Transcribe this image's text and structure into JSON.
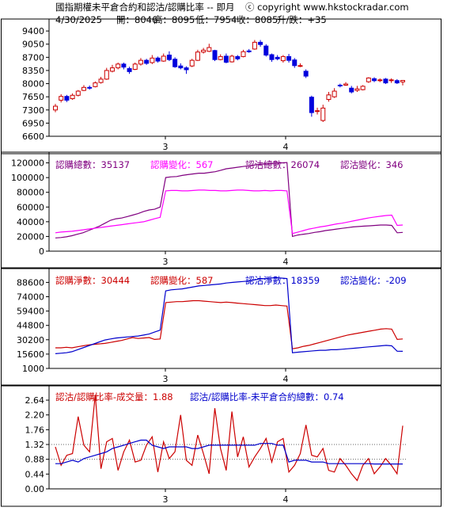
{
  "header": {
    "title": "國指期權未平倉合約和認沽/認購比率 -- 即月",
    "copyright": "ⓒ copyright www.hkstockradar.com",
    "date": "4/30/2025",
    "open_label": "開：8046",
    "high_label": "高：8095",
    "low_label": "低：7954",
    "close_label": "收：8085",
    "change_label": "升/跌：+35"
  },
  "colors": {
    "up": "#cc0000",
    "down": "#0000dd",
    "call_total": "#800080",
    "call_change": "#ff00ff",
    "call_net": "#cc0000",
    "put_net": "#0000cc",
    "ratio_volume": "#cc0000",
    "ratio_oi": "#0000cc"
  },
  "chart_data": [
    {
      "type": "candlestick",
      "x_tick_labels": [
        "3",
        "4"
      ],
      "y_ticks": [
        6600,
        6950,
        7300,
        7650,
        8000,
        8350,
        8700,
        9050,
        9400
      ],
      "ylim": [
        6600,
        9550
      ],
      "candles": [
        {
          "o": 7300,
          "c": 7400,
          "h": 7460,
          "l": 7240
        },
        {
          "o": 7560,
          "c": 7660,
          "h": 7720,
          "l": 7500
        },
        {
          "o": 7660,
          "c": 7560,
          "h": 7700,
          "l": 7510
        },
        {
          "o": 7600,
          "c": 7690,
          "h": 7740,
          "l": 7570
        },
        {
          "o": 7690,
          "c": 7800,
          "h": 7830,
          "l": 7660
        },
        {
          "o": 7820,
          "c": 7900,
          "h": 7960,
          "l": 7800
        },
        {
          "o": 7900,
          "c": 7880,
          "h": 7950,
          "l": 7840
        },
        {
          "o": 7920,
          "c": 8020,
          "h": 8060,
          "l": 7900
        },
        {
          "o": 8030,
          "c": 8120,
          "h": 8180,
          "l": 8000
        },
        {
          "o": 8120,
          "c": 8350,
          "h": 8420,
          "l": 8100
        },
        {
          "o": 8330,
          "c": 8420,
          "h": 8500,
          "l": 8300
        },
        {
          "o": 8420,
          "c": 8520,
          "h": 8560,
          "l": 8380
        },
        {
          "o": 8520,
          "c": 8440,
          "h": 8560,
          "l": 8380
        },
        {
          "o": 8400,
          "c": 8320,
          "h": 8450,
          "l": 8260
        },
        {
          "o": 8380,
          "c": 8520,
          "h": 8560,
          "l": 8360
        },
        {
          "o": 8520,
          "c": 8620,
          "h": 8680,
          "l": 8480
        },
        {
          "o": 8620,
          "c": 8540,
          "h": 8660,
          "l": 8500
        },
        {
          "o": 8560,
          "c": 8680,
          "h": 8760,
          "l": 8520
        },
        {
          "o": 8680,
          "c": 8600,
          "h": 8720,
          "l": 8560
        },
        {
          "o": 8600,
          "c": 8730,
          "h": 8800,
          "l": 8580
        },
        {
          "o": 8760,
          "c": 8640,
          "h": 8860,
          "l": 8600
        },
        {
          "o": 8650,
          "c": 8450,
          "h": 8700,
          "l": 8420
        },
        {
          "o": 8470,
          "c": 8420,
          "h": 8540,
          "l": 8380
        },
        {
          "o": 8420,
          "c": 8370,
          "h": 8460,
          "l": 8260
        },
        {
          "o": 8470,
          "c": 8620,
          "h": 8660,
          "l": 8440
        },
        {
          "o": 8620,
          "c": 8840,
          "h": 8900,
          "l": 8600
        },
        {
          "o": 8840,
          "c": 8890,
          "h": 8950,
          "l": 8800
        },
        {
          "o": 8860,
          "c": 8960,
          "h": 9060,
          "l": 8840
        },
        {
          "o": 8880,
          "c": 8640,
          "h": 8900,
          "l": 8600
        },
        {
          "o": 8640,
          "c": 8720,
          "h": 8780,
          "l": 8620
        },
        {
          "o": 8730,
          "c": 8570,
          "h": 8800,
          "l": 8540
        },
        {
          "o": 8580,
          "c": 8730,
          "h": 8770,
          "l": 8560
        },
        {
          "o": 8720,
          "c": 8660,
          "h": 8760,
          "l": 8620
        },
        {
          "o": 8720,
          "c": 8850,
          "h": 8900,
          "l": 8700
        },
        {
          "o": 8870,
          "c": 8860,
          "h": 8920,
          "l": 8820
        },
        {
          "o": 8920,
          "c": 9100,
          "h": 9160,
          "l": 8900
        },
        {
          "o": 9100,
          "c": 9040,
          "h": 9160,
          "l": 8980
        },
        {
          "o": 9000,
          "c": 8760,
          "h": 9050,
          "l": 8720
        },
        {
          "o": 8770,
          "c": 8640,
          "h": 8800,
          "l": 8580
        },
        {
          "o": 8700,
          "c": 8660,
          "h": 8760,
          "l": 8620
        },
        {
          "o": 8610,
          "c": 8720,
          "h": 8760,
          "l": 8560
        },
        {
          "o": 8720,
          "c": 8620,
          "h": 8790,
          "l": 8560
        },
        {
          "o": 8630,
          "c": 8480,
          "h": 8680,
          "l": 8420
        },
        {
          "o": 8480,
          "c": 8480,
          "h": 8540,
          "l": 8440
        },
        {
          "o": 8330,
          "c": 8200,
          "h": 8380,
          "l": 8150
        },
        {
          "o": 7640,
          "c": 7230,
          "h": 7680,
          "l": 7120
        },
        {
          "o": 7260,
          "c": 7280,
          "h": 7360,
          "l": 7180
        },
        {
          "o": 7020,
          "c": 7350,
          "h": 7440,
          "l": 6980
        },
        {
          "o": 7580,
          "c": 7700,
          "h": 7780,
          "l": 7520
        },
        {
          "o": 7650,
          "c": 7800,
          "h": 7880,
          "l": 7620
        },
        {
          "o": 7960,
          "c": 7940,
          "h": 8000,
          "l": 7900
        },
        {
          "o": 7960,
          "c": 7990,
          "h": 8040,
          "l": 7940
        },
        {
          "o": 7880,
          "c": 7780,
          "h": 7940,
          "l": 7740
        },
        {
          "o": 7820,
          "c": 7860,
          "h": 7940,
          "l": 7780
        },
        {
          "o": 7840,
          "c": 7930,
          "h": 7960,
          "l": 7820
        },
        {
          "o": 8050,
          "c": 8150,
          "h": 8170,
          "l": 8020
        },
        {
          "o": 8130,
          "c": 8080,
          "h": 8170,
          "l": 8040
        },
        {
          "o": 8080,
          "c": 8100,
          "h": 8140,
          "l": 8040
        },
        {
          "o": 8120,
          "c": 8020,
          "h": 8150,
          "l": 7990
        },
        {
          "o": 8080,
          "c": 8100,
          "h": 8140,
          "l": 8020
        },
        {
          "o": 8080,
          "c": 8020,
          "h": 8120,
          "l": 7990
        },
        {
          "o": 8046,
          "c": 8085,
          "h": 8095,
          "l": 7954
        }
      ]
    },
    {
      "type": "line",
      "legend": [
        {
          "text": "認購總數：35137",
          "color": "#800080"
        },
        {
          "text": "認購變化：567",
          "color": "#ff00ff"
        },
        {
          "text": "認沽總數：26074",
          "color": "#800080"
        },
        {
          "text": "認沽變化：346",
          "color": "#800080"
        }
      ],
      "x_tick_labels": [
        "3",
        "4"
      ],
      "y_ticks": [
        0,
        20000,
        40000,
        60000,
        80000,
        100000,
        120000
      ],
      "ylim": [
        0,
        126000
      ],
      "series": [
        {
          "color": "#800080",
          "values": [
            18000,
            18500,
            19500,
            21000,
            23000,
            25000,
            28000,
            31000,
            34000,
            38000,
            42000,
            44000,
            45000,
            47000,
            49000,
            51000,
            54000,
            56000,
            57000,
            60000,
            100000,
            101000,
            101500,
            103000,
            104000,
            105000,
            106000,
            106000,
            107000,
            108000,
            110000,
            112000,
            113000,
            114000,
            115000,
            116000,
            117000,
            118000,
            118500,
            119000,
            119500,
            120000,
            120500,
            20000,
            22000,
            23000,
            24000,
            25500,
            26500,
            28000,
            29000,
            30000,
            31000,
            32000,
            33000,
            33500,
            34000,
            34500,
            35000,
            35500,
            35500,
            35000,
            25000,
            25500
          ]
        },
        {
          "color": "#ff00ff",
          "values": [
            25000,
            26000,
            26500,
            27000,
            28000,
            29000,
            30000,
            31000,
            32000,
            33000,
            34000,
            35000,
            36000,
            37000,
            38000,
            39000,
            40000,
            42000,
            44000,
            46000,
            82000,
            82500,
            82500,
            82000,
            82000,
            82500,
            83000,
            83000,
            82500,
            82500,
            82000,
            82000,
            82500,
            83000,
            83000,
            82500,
            82000,
            82000,
            82500,
            82000,
            82500,
            82500,
            82000,
            24000,
            26000,
            28000,
            30000,
            31500,
            33000,
            34000,
            35500,
            37000,
            38000,
            39500,
            41000,
            42500,
            44000,
            45500,
            46500,
            47500,
            48500,
            49000,
            35000,
            35500
          ]
        }
      ]
    },
    {
      "type": "line",
      "legend": [
        {
          "text": "認購淨數：30444",
          "color": "#cc0000"
        },
        {
          "text": "認購變化：587",
          "color": "#cc0000"
        },
        {
          "text": "認沽淨數：18359",
          "color": "#0000cc"
        },
        {
          "text": "認沽變化：-209",
          "color": "#0000cc"
        }
      ],
      "x_tick_labels": [
        "3",
        "4"
      ],
      "y_ticks": [
        1000,
        15600,
        30200,
        44800,
        59400,
        74000,
        88600
      ],
      "ylim": [
        1000,
        97000
      ],
      "series": [
        {
          "color": "#cc0000",
          "values": [
            22000,
            22000,
            22500,
            22000,
            23000,
            24000,
            25000,
            25500,
            26000,
            26500,
            27500,
            28500,
            29500,
            31000,
            32500,
            31500,
            32000,
            32500,
            30500,
            31000,
            68000,
            68500,
            69000,
            69000,
            69500,
            70000,
            70000,
            69500,
            69000,
            68500,
            68000,
            68500,
            68000,
            67500,
            67000,
            66500,
            66000,
            65500,
            65000,
            65000,
            65500,
            65000,
            64500,
            21000,
            22000,
            23500,
            24500,
            26000,
            27500,
            29000,
            30500,
            32000,
            33500,
            35000,
            36000,
            37000,
            38000,
            39000,
            40000,
            41000,
            41500,
            41000,
            30500,
            31000
          ]
        },
        {
          "color": "#0000cc",
          "values": [
            16000,
            16500,
            17000,
            18000,
            20000,
            22000,
            24000,
            26000,
            28000,
            30000,
            31000,
            32000,
            32500,
            33000,
            33500,
            34000,
            35000,
            36000,
            38000,
            40000,
            80000,
            81000,
            81500,
            82000,
            83000,
            84000,
            85000,
            85500,
            86000,
            86500,
            87000,
            88000,
            88500,
            89000,
            89500,
            90000,
            91000,
            92000,
            92500,
            93000,
            93500,
            93000,
            92500,
            17000,
            17500,
            18000,
            18500,
            19000,
            19500,
            19500,
            20000,
            20000,
            20500,
            21000,
            21500,
            22000,
            22500,
            23000,
            23500,
            24000,
            24500,
            24000,
            18500,
            18400
          ]
        }
      ]
    },
    {
      "type": "line",
      "legend": [
        {
          "text": "認沽/認購比率-成交量：1.88",
          "color": "#cc0000"
        },
        {
          "text": "認沽/認購比率-未平倉合約總數：0.74",
          "color": "#0000cc"
        }
      ],
      "x_tick_labels": [
        "3",
        "4"
      ],
      "y_ticks": [
        0.0,
        0.44,
        0.88,
        1.32,
        1.76,
        2.2,
        2.64
      ],
      "y_tick_labels": [
        "0.00",
        "0.44",
        "0.88",
        "1.32",
        "1.76",
        "2.20",
        "2.64"
      ],
      "reference_lines": [
        0.88,
        1.32
      ],
      "ylim": [
        0,
        2.9
      ],
      "series": [
        {
          "color": "#cc0000",
          "values": [
            1.25,
            0.7,
            1.0,
            1.05,
            2.15,
            1.3,
            1.1,
            2.8,
            0.6,
            1.4,
            1.5,
            0.55,
            1.1,
            1.45,
            0.8,
            0.85,
            1.3,
            1.55,
            0.5,
            1.4,
            0.9,
            1.1,
            2.2,
            0.85,
            0.7,
            1.6,
            1.05,
            0.45,
            2.4,
            1.2,
            0.55,
            2.3,
            0.95,
            1.55,
            0.65,
            0.95,
            1.2,
            1.5,
            0.8,
            1.4,
            1.5,
            0.5,
            0.7,
            1.05,
            1.9,
            1.0,
            0.95,
            1.2,
            0.55,
            0.5,
            0.9,
            0.7,
            0.45,
            0.25,
            0.7,
            0.9,
            0.45,
            0.65,
            0.9,
            0.7,
            0.45,
            1.88
          ]
        },
        {
          "color": "#0000cc",
          "values": [
            0.75,
            0.75,
            0.8,
            0.85,
            0.8,
            0.9,
            0.95,
            1.0,
            1.05,
            1.1,
            1.2,
            1.25,
            1.3,
            1.35,
            1.4,
            1.45,
            1.45,
            1.3,
            1.25,
            1.2,
            1.25,
            1.25,
            1.25,
            1.25,
            1.2,
            1.2,
            1.25,
            1.3,
            1.3,
            1.3,
            1.3,
            1.3,
            1.3,
            1.3,
            1.3,
            1.3,
            1.35,
            1.35,
            1.35,
            1.3,
            1.3,
            0.8,
            0.85,
            0.85,
            0.85,
            0.8,
            0.8,
            0.8,
            0.75,
            0.75,
            0.75,
            0.75,
            0.75,
            0.75,
            0.75,
            0.75,
            0.74,
            0.74,
            0.74,
            0.74,
            0.74,
            0.74
          ]
        }
      ]
    }
  ]
}
